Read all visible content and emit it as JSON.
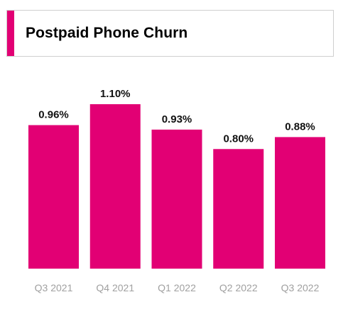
{
  "chart_data": {
    "type": "bar",
    "title": "Postpaid Phone Churn",
    "categories": [
      "Q3 2021",
      "Q4 2021",
      "Q1 2022",
      "Q2 2022",
      "Q3 2022"
    ],
    "values": [
      0.96,
      1.1,
      0.93,
      0.8,
      0.88
    ],
    "value_labels": [
      "0.96%",
      "1.10%",
      "0.93%",
      "0.80%",
      "0.88%"
    ],
    "unit": "%",
    "ylim": [
      0,
      1.1
    ],
    "grid": false,
    "legend": "none",
    "colors": {
      "bar": "#E20074",
      "accent": "#E20074",
      "tick_label": "#A0A0A0"
    }
  }
}
